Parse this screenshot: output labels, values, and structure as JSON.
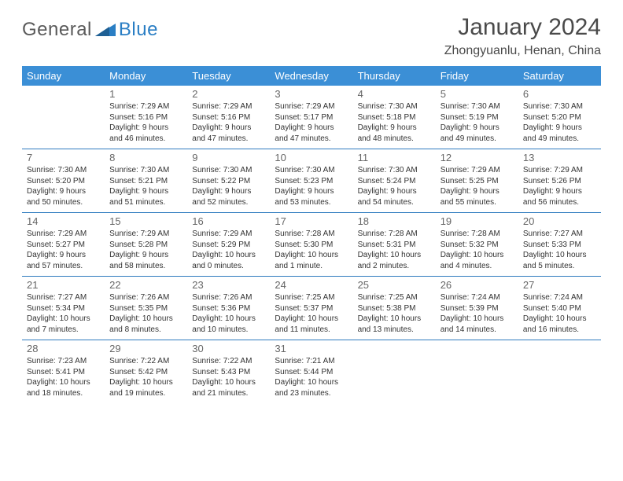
{
  "brand": {
    "name_a": "General",
    "name_b": "Blue"
  },
  "title": "January 2024",
  "location": "Zhongyuanlu, Henan, China",
  "colors": {
    "header_bg": "#3b8fd6",
    "header_text": "#ffffff",
    "rule": "#2f7bbf",
    "text": "#333333",
    "daynum": "#666666",
    "title": "#4a4a4a"
  },
  "fonts": {
    "title_size": 30,
    "location_size": 16,
    "header_size": 13,
    "daynum_size": 13,
    "body_size": 10
  },
  "weekdays": [
    "Sunday",
    "Monday",
    "Tuesday",
    "Wednesday",
    "Thursday",
    "Friday",
    "Saturday"
  ],
  "weeks": [
    [
      null,
      {
        "n": "1",
        "sr": "7:29 AM",
        "ss": "5:16 PM",
        "dl": "9 hours and 46 minutes."
      },
      {
        "n": "2",
        "sr": "7:29 AM",
        "ss": "5:16 PM",
        "dl": "9 hours and 47 minutes."
      },
      {
        "n": "3",
        "sr": "7:29 AM",
        "ss": "5:17 PM",
        "dl": "9 hours and 47 minutes."
      },
      {
        "n": "4",
        "sr": "7:30 AM",
        "ss": "5:18 PM",
        "dl": "9 hours and 48 minutes."
      },
      {
        "n": "5",
        "sr": "7:30 AM",
        "ss": "5:19 PM",
        "dl": "9 hours and 49 minutes."
      },
      {
        "n": "6",
        "sr": "7:30 AM",
        "ss": "5:20 PM",
        "dl": "9 hours and 49 minutes."
      }
    ],
    [
      {
        "n": "7",
        "sr": "7:30 AM",
        "ss": "5:20 PM",
        "dl": "9 hours and 50 minutes."
      },
      {
        "n": "8",
        "sr": "7:30 AM",
        "ss": "5:21 PM",
        "dl": "9 hours and 51 minutes."
      },
      {
        "n": "9",
        "sr": "7:30 AM",
        "ss": "5:22 PM",
        "dl": "9 hours and 52 minutes."
      },
      {
        "n": "10",
        "sr": "7:30 AM",
        "ss": "5:23 PM",
        "dl": "9 hours and 53 minutes."
      },
      {
        "n": "11",
        "sr": "7:30 AM",
        "ss": "5:24 PM",
        "dl": "9 hours and 54 minutes."
      },
      {
        "n": "12",
        "sr": "7:29 AM",
        "ss": "5:25 PM",
        "dl": "9 hours and 55 minutes."
      },
      {
        "n": "13",
        "sr": "7:29 AM",
        "ss": "5:26 PM",
        "dl": "9 hours and 56 minutes."
      }
    ],
    [
      {
        "n": "14",
        "sr": "7:29 AM",
        "ss": "5:27 PM",
        "dl": "9 hours and 57 minutes."
      },
      {
        "n": "15",
        "sr": "7:29 AM",
        "ss": "5:28 PM",
        "dl": "9 hours and 58 minutes."
      },
      {
        "n": "16",
        "sr": "7:29 AM",
        "ss": "5:29 PM",
        "dl": "10 hours and 0 minutes."
      },
      {
        "n": "17",
        "sr": "7:28 AM",
        "ss": "5:30 PM",
        "dl": "10 hours and 1 minute."
      },
      {
        "n": "18",
        "sr": "7:28 AM",
        "ss": "5:31 PM",
        "dl": "10 hours and 2 minutes."
      },
      {
        "n": "19",
        "sr": "7:28 AM",
        "ss": "5:32 PM",
        "dl": "10 hours and 4 minutes."
      },
      {
        "n": "20",
        "sr": "7:27 AM",
        "ss": "5:33 PM",
        "dl": "10 hours and 5 minutes."
      }
    ],
    [
      {
        "n": "21",
        "sr": "7:27 AM",
        "ss": "5:34 PM",
        "dl": "10 hours and 7 minutes."
      },
      {
        "n": "22",
        "sr": "7:26 AM",
        "ss": "5:35 PM",
        "dl": "10 hours and 8 minutes."
      },
      {
        "n": "23",
        "sr": "7:26 AM",
        "ss": "5:36 PM",
        "dl": "10 hours and 10 minutes."
      },
      {
        "n": "24",
        "sr": "7:25 AM",
        "ss": "5:37 PM",
        "dl": "10 hours and 11 minutes."
      },
      {
        "n": "25",
        "sr": "7:25 AM",
        "ss": "5:38 PM",
        "dl": "10 hours and 13 minutes."
      },
      {
        "n": "26",
        "sr": "7:24 AM",
        "ss": "5:39 PM",
        "dl": "10 hours and 14 minutes."
      },
      {
        "n": "27",
        "sr": "7:24 AM",
        "ss": "5:40 PM",
        "dl": "10 hours and 16 minutes."
      }
    ],
    [
      {
        "n": "28",
        "sr": "7:23 AM",
        "ss": "5:41 PM",
        "dl": "10 hours and 18 minutes."
      },
      {
        "n": "29",
        "sr": "7:22 AM",
        "ss": "5:42 PM",
        "dl": "10 hours and 19 minutes."
      },
      {
        "n": "30",
        "sr": "7:22 AM",
        "ss": "5:43 PM",
        "dl": "10 hours and 21 minutes."
      },
      {
        "n": "31",
        "sr": "7:21 AM",
        "ss": "5:44 PM",
        "dl": "10 hours and 23 minutes."
      },
      null,
      null,
      null
    ]
  ],
  "labels": {
    "sunrise": "Sunrise:",
    "sunset": "Sunset:",
    "daylight": "Daylight:"
  }
}
